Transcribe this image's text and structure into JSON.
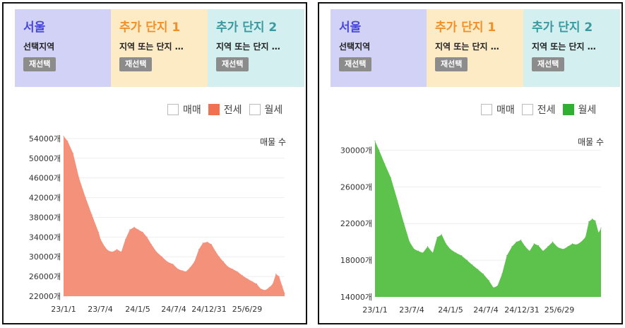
{
  "panels": [
    {
      "header": {
        "regions": [
          {
            "title": "서울",
            "subtitle": "선택지역",
            "button": "재선택"
          },
          {
            "title": "추가 단지 1",
            "subtitle": "지역 또는 단지 …",
            "button": "재선택"
          },
          {
            "title": "추가 단지 2",
            "subtitle": "지역 또는 단지 …",
            "button": "재선택"
          }
        ]
      },
      "legend": [
        {
          "label": "매매",
          "checked": false,
          "color": "#ffffff"
        },
        {
          "label": "전세",
          "checked": true,
          "color": "#f07050"
        },
        {
          "label": "월세",
          "checked": false,
          "color": "#ffffff"
        }
      ],
      "chart_data": {
        "type": "area",
        "unit_label": "매물 수",
        "fill_color": "#f4917a",
        "x_ticks": [
          "23/1/1",
          "23/7/4",
          "24/1/5",
          "24/7/4",
          "24/12/31",
          "25/6/29"
        ],
        "y_ticks": [
          "54000개",
          "50000개",
          "46000개",
          "42000개",
          "38000개",
          "34000개",
          "30000개",
          "26000개",
          "22000개"
        ],
        "ylim": [
          22000,
          55000
        ],
        "x": [
          "2023-01-01",
          "2023-01-20",
          "2023-02-15",
          "2023-03-15",
          "2023-04-15",
          "2023-05-15",
          "2023-06-15",
          "2023-06-25",
          "2023-07-15",
          "2023-08-01",
          "2023-08-20",
          "2023-09-10",
          "2023-10-01",
          "2023-10-20",
          "2023-11-10",
          "2023-12-01",
          "2023-12-20",
          "2024-01-10",
          "2024-01-30",
          "2024-02-20",
          "2024-03-15",
          "2024-04-10",
          "2024-05-05",
          "2024-06-01",
          "2024-06-25",
          "2024-07-15",
          "2024-08-01",
          "2024-08-20",
          "2024-09-10",
          "2024-10-01",
          "2024-10-20",
          "2024-11-10",
          "2024-11-30",
          "2024-12-20",
          "2025-01-05",
          "2025-01-25",
          "2025-02-15",
          "2025-03-10",
          "2025-04-01",
          "2025-04-25",
          "2025-05-20",
          "2025-06-10",
          "2025-07-01",
          "2025-07-20",
          "2025-08-10",
          "2025-08-30",
          "2025-09-15",
          "2025-09-30",
          "2025-10-15",
          "2025-10-30",
          "2025-11-10"
        ],
        "y": [
          54500,
          53500,
          51000,
          46000,
          42000,
          38500,
          35000,
          33500,
          32000,
          31200,
          31000,
          31500,
          31000,
          33500,
          35500,
          36000,
          35500,
          35000,
          34000,
          32500,
          31000,
          30000,
          29000,
          28500,
          27500,
          27200,
          27000,
          27800,
          29000,
          31500,
          32800,
          33000,
          32500,
          31000,
          30000,
          29000,
          28000,
          27500,
          27000,
          26200,
          25500,
          25000,
          24500,
          23500,
          23200,
          23800,
          24500,
          26500,
          26000,
          24000,
          22600
        ]
      }
    },
    {
      "header": {
        "regions": [
          {
            "title": "서울",
            "subtitle": "선택지역",
            "button": "재선택"
          },
          {
            "title": "추가 단지 1",
            "subtitle": "지역 또는 단지 …",
            "button": "재선택"
          },
          {
            "title": "추가 단지 2",
            "subtitle": "지역 또는 단지 …",
            "button": "재선택"
          }
        ]
      },
      "legend": [
        {
          "label": "매매",
          "checked": false,
          "color": "#ffffff"
        },
        {
          "label": "전세",
          "checked": false,
          "color": "#ffffff"
        },
        {
          "label": "월세",
          "checked": true,
          "color": "#30b030"
        }
      ],
      "chart_data": {
        "type": "area",
        "unit_label": "매물 수",
        "fill_color": "#5cc24c",
        "x_ticks": [
          "23/1/1",
          "23/7/4",
          "24/1/5",
          "24/7/4",
          "24/12/31",
          "25/6/29"
        ],
        "y_ticks": [
          "30000개",
          "26000개",
          "22000개",
          "18000개",
          "14000개"
        ],
        "ylim": [
          14000,
          31500
        ],
        "x": [
          "2023-01-01",
          "2023-01-20",
          "2023-02-15",
          "2023-03-15",
          "2023-04-15",
          "2023-05-15",
          "2023-06-10",
          "2023-07-01",
          "2023-07-20",
          "2023-08-10",
          "2023-09-01",
          "2023-09-25",
          "2023-10-15",
          "2023-11-05",
          "2023-11-25",
          "2023-12-15",
          "2024-01-10",
          "2024-02-05",
          "2024-03-01",
          "2024-03-25",
          "2024-04-20",
          "2024-05-15",
          "2024-06-10",
          "2024-07-01",
          "2024-07-20",
          "2024-08-10",
          "2024-09-01",
          "2024-09-25",
          "2024-10-15",
          "2024-11-05",
          "2024-11-25",
          "2024-12-15",
          "2025-01-05",
          "2025-01-25",
          "2025-02-15",
          "2025-03-10",
          "2025-04-01",
          "2025-04-25",
          "2025-05-20",
          "2025-06-10",
          "2025-07-01",
          "2025-07-20",
          "2025-08-10",
          "2025-08-30",
          "2025-09-15",
          "2025-10-01",
          "2025-10-15",
          "2025-10-30",
          "2025-11-10"
        ],
        "y": [
          31000,
          30000,
          28500,
          27000,
          24500,
          22000,
          20000,
          19200,
          19000,
          18800,
          19500,
          18800,
          20500,
          20800,
          19800,
          19200,
          18800,
          18500,
          18000,
          17500,
          17000,
          16500,
          15800,
          15000,
          15200,
          16500,
          18500,
          19500,
          20000,
          20200,
          19500,
          19000,
          19800,
          19600,
          19000,
          19500,
          20000,
          19400,
          19200,
          19500,
          19800,
          19700,
          20000,
          20500,
          22200,
          22500,
          22300,
          21000,
          21500
        ]
      }
    }
  ]
}
